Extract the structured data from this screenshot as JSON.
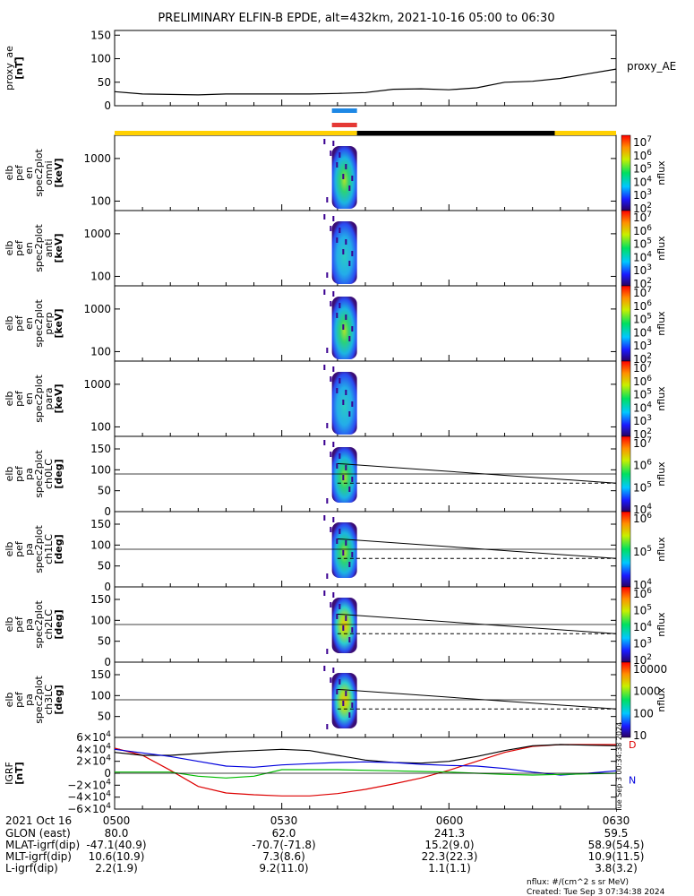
{
  "title": "PRELIMINARY ELFIN-B EPDE, alt=432km, 2021-10-16 05:00 to 06:30",
  "chart_data": [
    {
      "type": "line",
      "panel": "proxy_ae",
      "ylabel_lines": [
        "proxy_ae",
        "[nT]"
      ],
      "legend": "proxy_AE",
      "yticks": [
        "0",
        "50",
        "100",
        "150"
      ],
      "ylim": [
        0,
        160
      ],
      "x_minutes": [
        0,
        5,
        10,
        15,
        20,
        25,
        30,
        35,
        40,
        45,
        50,
        55,
        60,
        65,
        70,
        75,
        80,
        85,
        90
      ],
      "values": [
        30,
        25,
        24,
        23,
        25,
        25,
        25,
        25,
        26,
        28,
        35,
        36,
        34,
        38,
        50,
        52,
        58,
        68,
        78
      ]
    },
    {
      "type": "heatmap",
      "panel": "omni",
      "ylabel_lines": [
        "elb",
        "pef",
        "en",
        "spec2plot",
        "omni",
        "[keV]"
      ],
      "yscale": "log",
      "yticks": [
        "100",
        "1000"
      ],
      "colorbar": {
        "label": "nflux",
        "ticks": [
          "10^7",
          "10^6",
          "10^5",
          "10^4",
          "10^3",
          "10^2"
        ]
      }
    },
    {
      "type": "heatmap",
      "panel": "anti",
      "ylabel_lines": [
        "elb",
        "pef",
        "en",
        "spec2plot",
        "anti",
        "[keV]"
      ],
      "yscale": "log",
      "yticks": [
        "100",
        "1000"
      ],
      "colorbar": {
        "label": "nflux",
        "ticks": [
          "10^7",
          "10^6",
          "10^5",
          "10^4",
          "10^3",
          "10^2"
        ]
      }
    },
    {
      "type": "heatmap",
      "panel": "perp",
      "ylabel_lines": [
        "elb",
        "pef",
        "en",
        "spec2plot",
        "perp",
        "[keV]"
      ],
      "yscale": "log",
      "yticks": [
        "100",
        "1000"
      ],
      "colorbar": {
        "label": "nflux",
        "ticks": [
          "10^7",
          "10^6",
          "10^5",
          "10^4",
          "10^3",
          "10^2"
        ]
      }
    },
    {
      "type": "heatmap",
      "panel": "para",
      "ylabel_lines": [
        "elb",
        "pef",
        "en",
        "spec2plot",
        "para",
        "[keV]"
      ],
      "yscale": "log",
      "yticks": [
        "100",
        "1000"
      ],
      "colorbar": {
        "label": "nflux",
        "ticks": [
          "10^7",
          "10^6",
          "10^5",
          "10^4",
          "10^3",
          "10^2"
        ]
      }
    },
    {
      "type": "heatmap",
      "panel": "ch0LC",
      "ylabel_lines": [
        "elb",
        "pef",
        "pa",
        "spec2plot",
        "ch0LC",
        "[deg]"
      ],
      "yticks": [
        "0",
        "50",
        "100",
        "150"
      ],
      "ylim": [
        0,
        180
      ],
      "colorbar": {
        "label": "nflux",
        "ticks": [
          "10^7",
          "10^6",
          "10^5",
          "10^4"
        ]
      }
    },
    {
      "type": "heatmap",
      "panel": "ch1LC",
      "ylabel_lines": [
        "elb",
        "pef",
        "pa",
        "spec2plot",
        "ch1LC",
        "[deg]"
      ],
      "yticks": [
        "0",
        "50",
        "100",
        "150"
      ],
      "ylim": [
        0,
        180
      ],
      "colorbar": {
        "label": "nflux",
        "ticks": [
          "10^6",
          "10^5",
          "10^4"
        ]
      }
    },
    {
      "type": "heatmap",
      "panel": "ch2LC",
      "ylabel_lines": [
        "elb",
        "pef",
        "pa",
        "spec2plot",
        "ch2LC",
        "[deg]"
      ],
      "yticks": [
        "0",
        "50",
        "100",
        "150"
      ],
      "ylim": [
        0,
        180
      ],
      "colorbar": {
        "label": "nflux",
        "ticks": [
          "10^6",
          "10^5",
          "10^4",
          "10^3",
          "10^2"
        ]
      }
    },
    {
      "type": "heatmap",
      "panel": "ch3LC",
      "ylabel_lines": [
        "elb",
        "pef",
        "pa",
        "spec2plot",
        "ch3LC",
        "[deg]"
      ],
      "yticks": [
        "50",
        "100",
        "150"
      ],
      "ylim": [
        0,
        180
      ],
      "colorbar": {
        "label": "nflux",
        "ticks": [
          "10000",
          "1000",
          "100",
          "10"
        ]
      }
    },
    {
      "type": "line",
      "panel": "igrf",
      "ylabel_lines": [
        "IGRF",
        "[nT]"
      ],
      "yticks": [
        "6×10^4",
        "4×10^4",
        "2×10^4",
        "0",
        "−2×10^4",
        "−4×10^4",
        "−6×10^4"
      ],
      "ylim": [
        -60000,
        60000
      ],
      "x_minutes": [
        0,
        5,
        10,
        15,
        20,
        25,
        30,
        35,
        40,
        45,
        50,
        55,
        60,
        65,
        70,
        75,
        80,
        85,
        90
      ],
      "series": [
        {
          "name": "D",
          "color": "#dd0000",
          "values": [
            42000,
            30000,
            5000,
            -22000,
            -33000,
            -36000,
            -38000,
            -38000,
            -34000,
            -27000,
            -18000,
            -8000,
            5000,
            20000,
            35000,
            45000,
            48000,
            48000,
            48000
          ]
        },
        {
          "name": "",
          "color": "#000000",
          "values": [
            35000,
            30000,
            30000,
            33000,
            36000,
            38000,
            40000,
            38000,
            30000,
            22000,
            18000,
            17000,
            20000,
            28000,
            38000,
            46000,
            48000,
            47000,
            46000
          ]
        },
        {
          "name": "N",
          "color": "#0000dd",
          "values": [
            40000,
            34000,
            28000,
            20000,
            12000,
            10000,
            14000,
            16000,
            18000,
            19000,
            18000,
            15000,
            13000,
            12000,
            8000,
            2000,
            -3000,
            0,
            4000
          ]
        },
        {
          "name": "",
          "color": "#00bb00",
          "values": [
            2000,
            2000,
            2000,
            -5000,
            -8000,
            -5000,
            6000,
            6000,
            6000,
            5000,
            4000,
            3000,
            2000,
            0,
            -2000,
            -3000,
            -2000,
            -1000,
            0
          ]
        }
      ],
      "legend": [
        "D",
        "N"
      ]
    }
  ],
  "time_axis": {
    "date_label": "2021 Oct 16",
    "tick_labels": [
      "0500",
      "0530",
      "0600",
      "0630"
    ]
  },
  "ephemeris": {
    "rows": [
      {
        "label": "GLON (east)",
        "values": [
          "80.0",
          "62.0",
          "241.3",
          "59.5"
        ]
      },
      {
        "label": "MLAT-igrf(dip)",
        "values": [
          "-47.1(40.9)",
          "-70.7(-71.8)",
          "15.2(9.0)",
          "58.9(54.5)"
        ]
      },
      {
        "label": "MLT-igrf(dip)",
        "values": [
          "10.6(10.9)",
          "7.3(8.6)",
          "22.3(22.3)",
          "10.9(11.5)"
        ]
      },
      {
        "label": "L-igrf(dip)",
        "values": [
          "2.2(1.9)",
          "9.2(11.0)",
          "1.1(1.1)",
          "3.8(3.2)"
        ]
      }
    ]
  },
  "footer": {
    "units": "nflux: #/(cm^2 s sr MeV)",
    "created": "Created: Tue Sep  3 07:34:38 2024"
  },
  "side_stamp": "Tue Sep  3 00:34:38 2024",
  "colors": {
    "region_day": "#ffd000",
    "region_night": "#000000",
    "bar_blue": "#1e88e5",
    "bar_red": "#e53935"
  }
}
